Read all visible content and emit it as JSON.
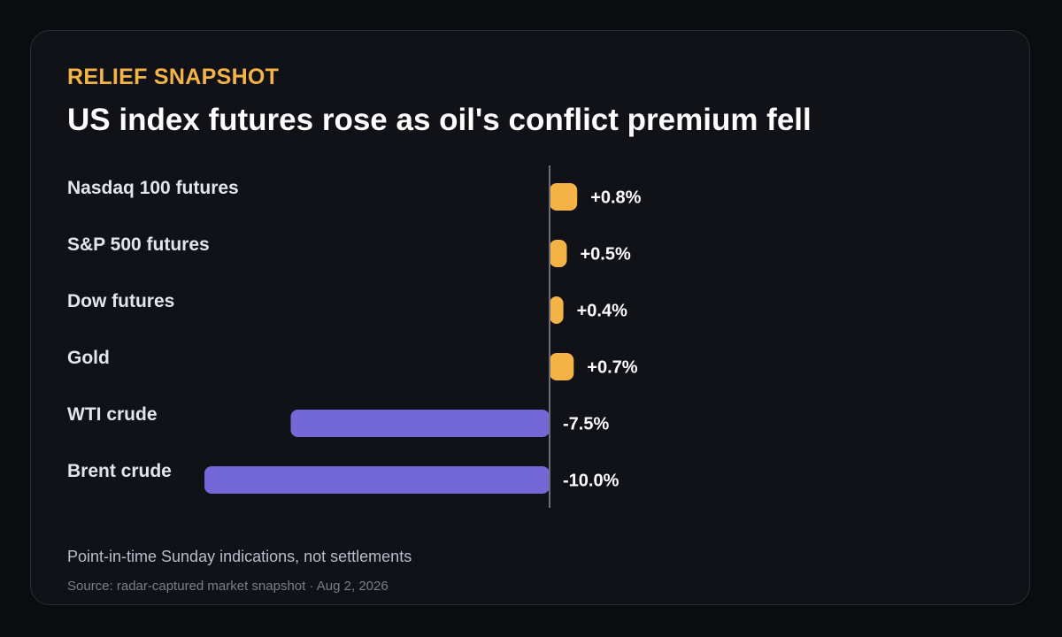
{
  "header": {
    "kicker": "RELIEF SNAPSHOT",
    "title": "US index futures rose as oil's conflict premium fell"
  },
  "footer": {
    "note": "Point-in-time Sunday indications, not settlements",
    "source": "Source: radar-captured market snapshot · Aug 2, 2026"
  },
  "colors": {
    "positive": "#f3b445",
    "negative": "#7468d8",
    "label": "#e3e5ee",
    "value": "#ffffff",
    "axis": "#6b6e78"
  },
  "chart_data": {
    "type": "bar",
    "orientation": "horizontal",
    "categories": [
      "Nasdaq 100 futures",
      "S&P 500 futures",
      "Dow futures",
      "Gold",
      "WTI crude",
      "Brent crude"
    ],
    "values": [
      0.8,
      0.5,
      0.4,
      0.7,
      -7.5,
      -10.0
    ],
    "value_labels": [
      "+0.8%",
      "+0.5%",
      "+0.4%",
      "+0.7%",
      "-7.5%",
      "-10.0%"
    ],
    "xlim": [
      -10.0,
      0.8
    ],
    "title": "US index futures rose as oil's conflict premium fell",
    "xlabel": "",
    "ylabel": "",
    "grid": false,
    "legend": "none"
  }
}
